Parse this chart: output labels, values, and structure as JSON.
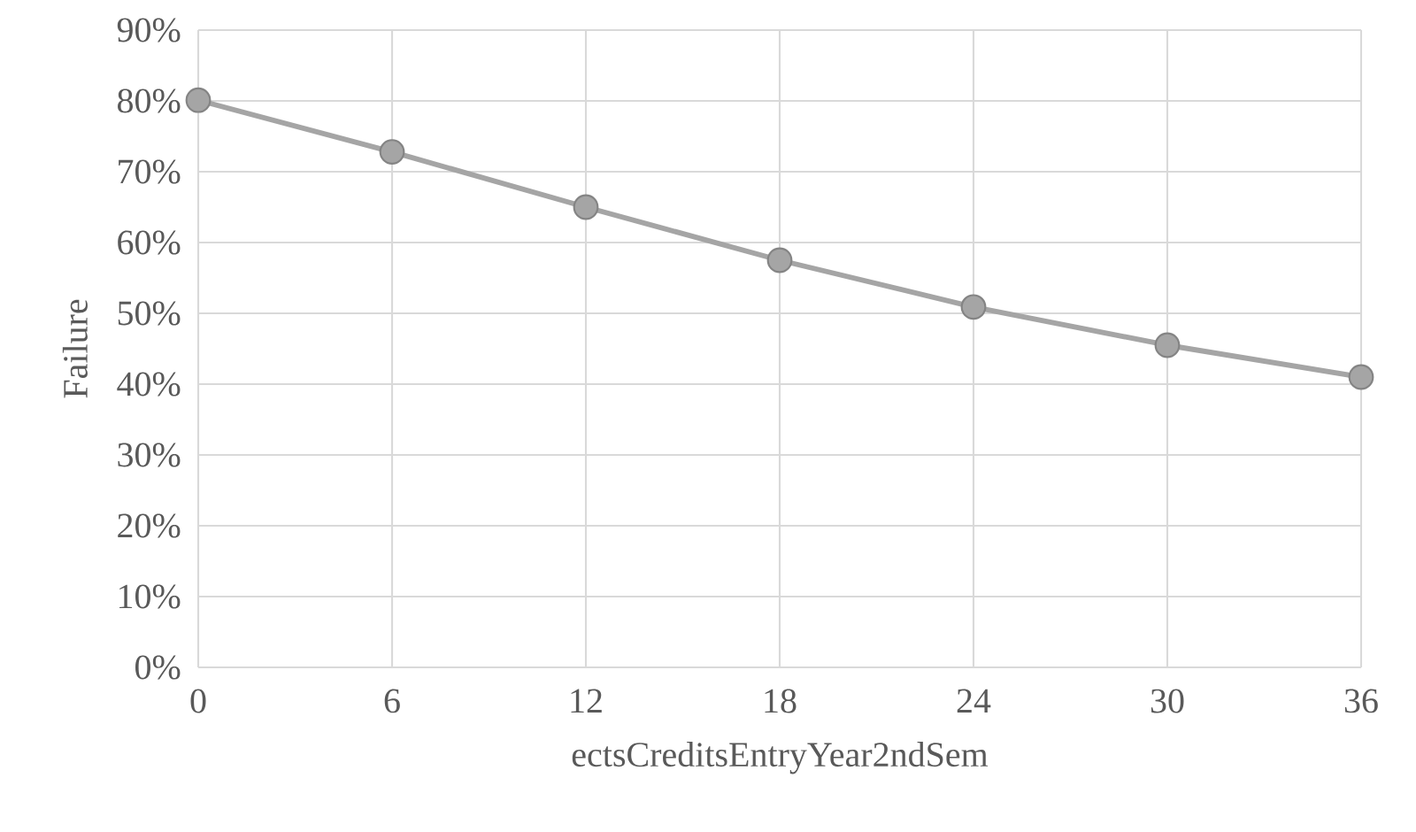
{
  "chart_data": {
    "type": "line",
    "xlabel": "ectsCreditsEntryYear2ndSem",
    "ylabel": "Failure",
    "x": [
      0,
      6,
      12,
      18,
      24,
      30,
      36
    ],
    "series": [
      {
        "color": "#a5a5a5",
        "values": [
          80.1,
          72.8,
          65,
          57.5,
          50.9,
          45.5,
          41
        ]
      }
    ],
    "xlim": [
      0,
      36
    ],
    "xticks": [
      0,
      6,
      12,
      18,
      24,
      30,
      36
    ],
    "ylim": [
      0,
      90
    ],
    "yticks": [
      {
        "value": 0,
        "label": "0%"
      },
      {
        "value": 10,
        "label": "10%"
      },
      {
        "value": 20,
        "label": "20%"
      },
      {
        "value": 30,
        "label": "30%"
      },
      {
        "value": 40,
        "label": "40%"
      },
      {
        "value": 50,
        "label": "50%"
      },
      {
        "value": 60,
        "label": "60%"
      },
      {
        "value": 70,
        "label": "70%"
      },
      {
        "value": 80,
        "label": "80%"
      },
      {
        "value": 90,
        "label": "90%"
      }
    ],
    "grid": true,
    "marker": "circle",
    "line_style": "solid"
  }
}
